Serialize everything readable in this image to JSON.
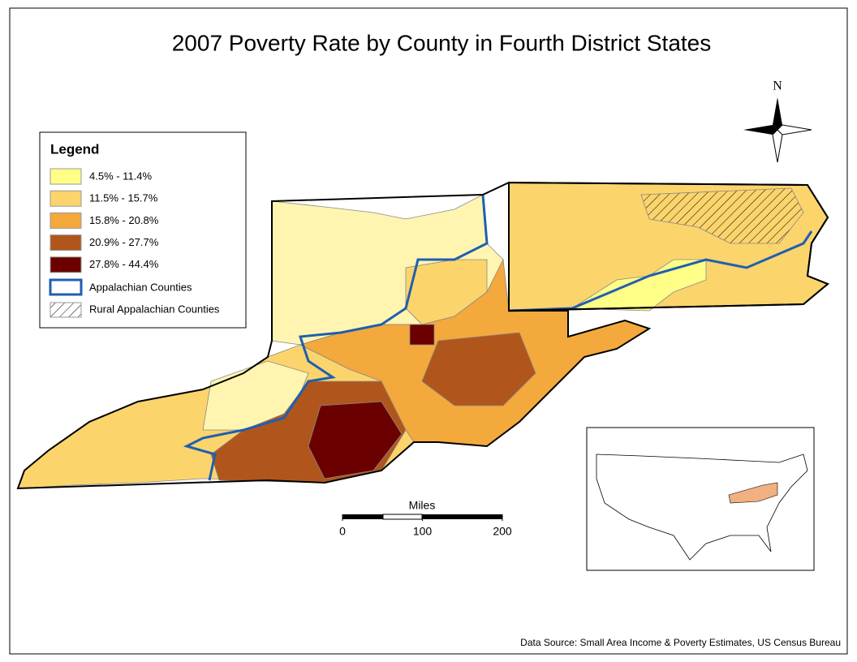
{
  "title": "2007 Poverty Rate by County in Fourth District States",
  "north": "N",
  "legend": {
    "title": "Legend",
    "items": [
      {
        "label": "4.5% - 11.4%",
        "color": "#ffff88"
      },
      {
        "label": "11.5% - 15.7%",
        "color": "#fbd46c"
      },
      {
        "label": "15.8% - 20.8%",
        "color": "#f3a93c"
      },
      {
        "label": "20.9% - 27.7%",
        "color": "#b0561c"
      },
      {
        "label": "27.8% - 44.4%",
        "color": "#6b0000"
      }
    ],
    "appalachian": "Appalachian Counties",
    "rural": "Rural Appalachian Counties"
  },
  "scale": {
    "label": "Miles",
    "ticks": [
      0,
      100,
      200
    ]
  },
  "source": "Data Source: Small Area Income & Poverty Estimates, US Census Bureau"
}
